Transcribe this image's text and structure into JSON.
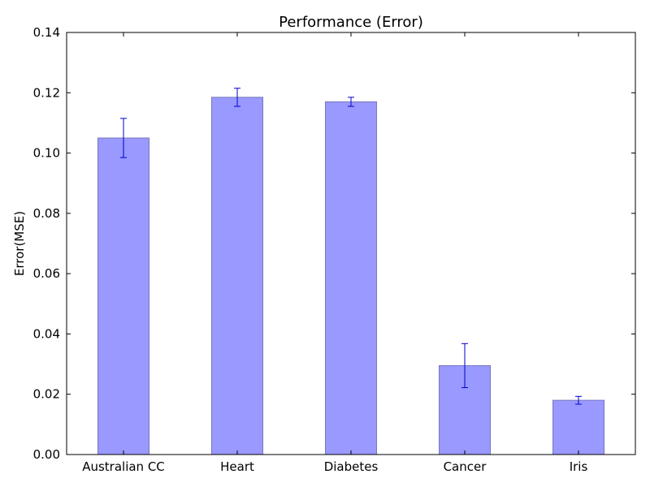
{
  "chart_data": {
    "type": "bar",
    "title": "Performance (Error)",
    "xlabel": "",
    "ylabel": "Error(MSE)",
    "categories": [
      "Australian CC",
      "Heart",
      "Diabetes",
      "Cancer",
      "Iris"
    ],
    "values": [
      0.105,
      0.1185,
      0.117,
      0.0295,
      0.018
    ],
    "errors": [
      0.0065,
      0.003,
      0.0015,
      0.0073,
      0.0013
    ],
    "ylim": [
      0,
      0.14
    ],
    "yticks": [
      "0.00",
      "0.02",
      "0.04",
      "0.06",
      "0.08",
      "0.10",
      "0.12",
      "0.14"
    ],
    "grid": false,
    "legend": "none",
    "colors": {
      "bar_fill": "#9999ff",
      "bar_edge": "#7777bb",
      "error_bar": "#0000cc",
      "axis": "#000000"
    }
  }
}
